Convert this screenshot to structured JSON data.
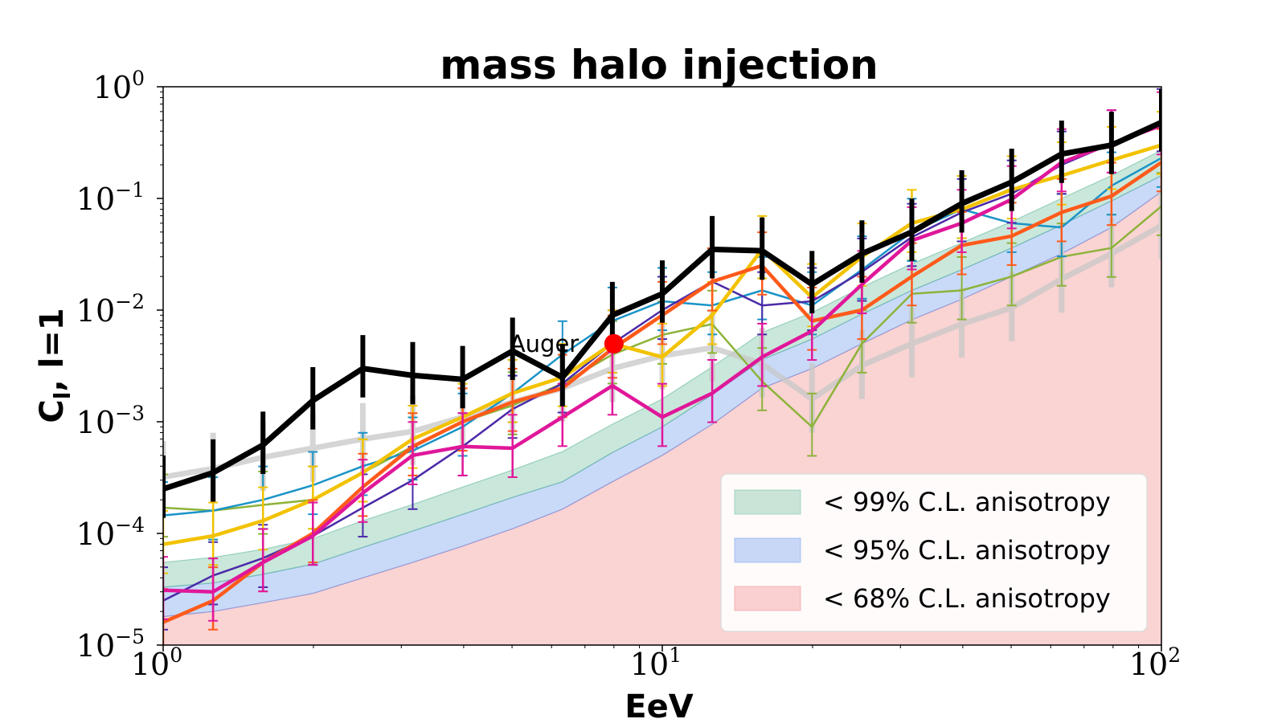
{
  "chart_data": {
    "type": "line",
    "title": "mass halo injection",
    "xlabel": "EeV",
    "ylabel": "C",
    "ylabel_sub": "l",
    "ylabel_suffix": ", l=1",
    "xscale": "log",
    "yscale": "log",
    "xlim": [
      1,
      100
    ],
    "ylim": [
      1e-05,
      1
    ],
    "x_ticks": [
      {
        "value": 1,
        "base": "10",
        "exp": "0"
      },
      {
        "value": 10,
        "base": "10",
        "exp": "1"
      },
      {
        "value": 100,
        "base": "10",
        "exp": "2"
      }
    ],
    "y_ticks": [
      {
        "value": 1,
        "base": "10",
        "exp": "0"
      },
      {
        "value": 0.1,
        "base": "10",
        "exp": "−1"
      },
      {
        "value": 0.01,
        "base": "10",
        "exp": "−2"
      },
      {
        "value": 0.001,
        "base": "10",
        "exp": "−3"
      },
      {
        "value": 0.0001,
        "base": "10",
        "exp": "−4"
      },
      {
        "value": 1e-05,
        "base": "10",
        "exp": "−5"
      }
    ],
    "x": [
      1.0,
      1.259,
      1.585,
      1.995,
      2.512,
      3.162,
      3.981,
      5.012,
      6.31,
      7.943,
      10.0,
      12.59,
      15.85,
      19.95,
      25.12,
      31.62,
      39.81,
      50.12,
      63.1,
      79.43,
      100.0
    ],
    "bands": [
      {
        "name": "< 68% C.L. anisotropy",
        "color": "#f08080",
        "opacity": 0.35,
        "upper": [
          1.8e-05,
          2e-05,
          2.4e-05,
          2.9e-05,
          4e-05,
          5.5e-05,
          7.7e-05,
          0.00011,
          0.000165,
          0.00029,
          0.0005,
          0.00095,
          0.002,
          0.003,
          0.005,
          0.0082,
          0.0125,
          0.02,
          0.032,
          0.055,
          0.115
        ]
      },
      {
        "name": "< 95% C.L. anisotropy",
        "color": "#6495ed",
        "opacity": 0.35,
        "upper": [
          3.3e-05,
          3.6e-05,
          4.3e-05,
          5.3e-05,
          7.5e-05,
          0.000105,
          0.000148,
          0.00021,
          0.00029,
          0.00053,
          0.0009,
          0.00175,
          0.0036,
          0.0055,
          0.0092,
          0.015,
          0.023,
          0.036,
          0.058,
          0.095,
          0.16
        ]
      },
      {
        "name": "< 99% C.L. anisotropy",
        "color": "#66bb99",
        "opacity": 0.35,
        "upper": [
          5.5e-05,
          6.1e-05,
          7.2e-05,
          9e-05,
          0.00013,
          0.000182,
          0.00026,
          0.00037,
          0.00054,
          0.00095,
          0.0016,
          0.0031,
          0.0063,
          0.0095,
          0.016,
          0.026,
          0.04,
          0.062,
          0.1,
          0.16,
          0.27
        ]
      }
    ],
    "series": [
      {
        "name": "grey",
        "color": "#c8c8c8",
        "width": 7,
        "errw": 7,
        "opacity": 0.75,
        "errfrac": 0.5,
        "x": [
          1.0,
          1.259,
          1.585,
          1.995,
          2.512,
          3.162,
          3.981,
          5.012,
          6.31,
          7.943,
          10.0,
          12.59,
          15.85,
          19.95,
          25.12,
          31.62,
          39.81,
          50.12,
          63.1,
          79.43,
          100.0
        ],
        "values": [
          0.00032,
          0.00038,
          0.00048,
          0.00058,
          0.0007,
          0.00082,
          0.0011,
          0.0015,
          0.002,
          0.003,
          0.0039,
          0.0046,
          0.0033,
          0.0016,
          0.0032,
          0.005,
          0.0075,
          0.0105,
          0.019,
          0.032,
          0.057
        ]
      },
      {
        "name": "olive",
        "color": "#8db33a",
        "width": 2.5,
        "errw": 2,
        "opacity": 1,
        "errfrac": 0.45,
        "x": [
          1.0,
          1.259,
          1.585,
          1.995,
          2.512,
          3.162,
          3.981,
          5.012,
          6.31,
          7.943,
          10.0,
          12.59,
          15.85,
          19.95,
          25.12,
          31.62,
          39.81,
          50.12,
          63.1,
          79.43,
          100.0
        ],
        "values": [
          0.00017,
          0.00016,
          0.00018,
          0.0002,
          0.00035,
          0.0006,
          0.001,
          0.0014,
          0.0022,
          0.004,
          0.006,
          0.0075,
          0.0023,
          0.0009,
          0.005,
          0.014,
          0.015,
          0.02,
          0.03,
          0.036,
          0.085
        ]
      },
      {
        "name": "teal",
        "color": "#1a93c7",
        "width": 2.5,
        "errw": 2,
        "opacity": 1,
        "errfrac": 0.45,
        "x": [
          1.0,
          1.259,
          1.585,
          1.995,
          2.512,
          3.162,
          3.981,
          5.012,
          6.31,
          7.943,
          10.0,
          12.59,
          15.85,
          19.95,
          25.12,
          31.62,
          39.81,
          50.12,
          63.1,
          79.43,
          100.0
        ],
        "values": [
          0.000145,
          0.00016,
          0.0002,
          0.00027,
          0.0004,
          0.00055,
          0.0009,
          0.0018,
          0.004,
          0.008,
          0.012,
          0.011,
          0.015,
          0.011,
          0.023,
          0.05,
          0.08,
          0.06,
          0.055,
          0.13,
          0.23
        ]
      },
      {
        "name": "indigo",
        "color": "#4b2aa8",
        "width": 2.5,
        "errw": 2,
        "opacity": 1,
        "errfrac": 0.45,
        "x": [
          1.0,
          1.259,
          1.585,
          1.995,
          2.512,
          3.162,
          3.981,
          5.012,
          6.31,
          7.943,
          10.0,
          12.59,
          15.85,
          19.95,
          25.12,
          31.62,
          39.81,
          50.12,
          63.1,
          79.43,
          100.0
        ],
        "values": [
          2.5e-05,
          4.2e-05,
          6e-05,
          9.5e-05,
          0.00017,
          0.0003,
          0.0006,
          0.0013,
          0.0022,
          0.005,
          0.01,
          0.018,
          0.011,
          0.012,
          0.022,
          0.045,
          0.075,
          0.11,
          0.2,
          0.31,
          0.48
        ]
      },
      {
        "name": "yellow",
        "color": "#f2c200",
        "width": 4.5,
        "errw": 2.5,
        "opacity": 1,
        "errfrac": 0.45,
        "x": [
          1.0,
          1.259,
          1.585,
          1.995,
          2.512,
          3.162,
          3.981,
          5.012,
          6.31,
          7.943,
          10.0,
          12.59,
          15.85,
          19.95,
          25.12,
          31.62,
          39.81,
          50.12,
          63.1,
          79.43,
          100.0
        ],
        "values": [
          8e-05,
          9.5e-05,
          0.00013,
          0.0002,
          0.00035,
          0.0007,
          0.0011,
          0.0018,
          0.0025,
          0.005,
          0.0038,
          0.009,
          0.035,
          0.013,
          0.03,
          0.06,
          0.08,
          0.12,
          0.16,
          0.22,
          0.3
        ]
      },
      {
        "name": "orange",
        "color": "#ff5a1a",
        "width": 4.5,
        "errw": 2.5,
        "opacity": 1,
        "errfrac": 0.45,
        "x": [
          1.0,
          1.259,
          1.585,
          1.995,
          2.512,
          3.162,
          3.981,
          5.012,
          6.31,
          7.943,
          10.0,
          12.59,
          15.85,
          19.95,
          25.12,
          31.62,
          39.81,
          50.12,
          63.1,
          79.43,
          100.0
        ],
        "values": [
          1.6e-05,
          2.5e-05,
          5.5e-05,
          0.0001,
          0.00026,
          0.0006,
          0.001,
          0.0015,
          0.002,
          0.0045,
          0.009,
          0.018,
          0.025,
          0.008,
          0.01,
          0.02,
          0.038,
          0.046,
          0.075,
          0.105,
          0.21
        ]
      },
      {
        "name": "magenta",
        "color": "#e0179a",
        "width": 4.5,
        "errw": 2.5,
        "opacity": 1,
        "errfrac": 0.45,
        "x": [
          1.0,
          1.259,
          1.585,
          1.995,
          2.512,
          3.162,
          3.981,
          5.012,
          6.31,
          7.943,
          10.0,
          12.59,
          15.85,
          19.95,
          25.12,
          31.62,
          39.81,
          50.12,
          63.1,
          79.43,
          100.0
        ],
        "values": [
          3.1e-05,
          3e-05,
          5.5e-05,
          9.5e-05,
          0.00023,
          0.0005,
          0.0006,
          0.00058,
          0.0011,
          0.0021,
          0.0011,
          0.0018,
          0.0038,
          0.0065,
          0.017,
          0.042,
          0.06,
          0.098,
          0.21,
          0.31,
          0.45
        ]
      },
      {
        "name": "black",
        "color": "#000000",
        "width": 7,
        "errw": 6,
        "opacity": 1,
        "errfrac": 0.45,
        "x": [
          1.0,
          1.259,
          1.585,
          1.995,
          2.512,
          3.162,
          3.981,
          5.012,
          6.31,
          7.943,
          10.0,
          12.59,
          15.85,
          19.95,
          25.12,
          31.62,
          39.81,
          50.12,
          63.1,
          79.43,
          100.0
        ],
        "values": [
          0.00025,
          0.00035,
          0.00062,
          0.00155,
          0.003,
          0.0026,
          0.0024,
          0.0043,
          0.0025,
          0.009,
          0.014,
          0.035,
          0.034,
          0.017,
          0.032,
          0.05,
          0.09,
          0.14,
          0.25,
          0.3,
          0.48
        ]
      }
    ],
    "annotation": {
      "label": "Auger",
      "x": 8.0,
      "y": 0.005,
      "color": "#ff0000"
    },
    "legend": {
      "placement": "lower-right",
      "entries": [
        {
          "label": "< 99% C.L. anisotropy",
          "color": "#66bb99"
        },
        {
          "label": "< 95% C.L. anisotropy",
          "color": "#6495ed"
        },
        {
          "label": "< 68% C.L. anisotropy",
          "color": "#f08080"
        }
      ]
    }
  }
}
